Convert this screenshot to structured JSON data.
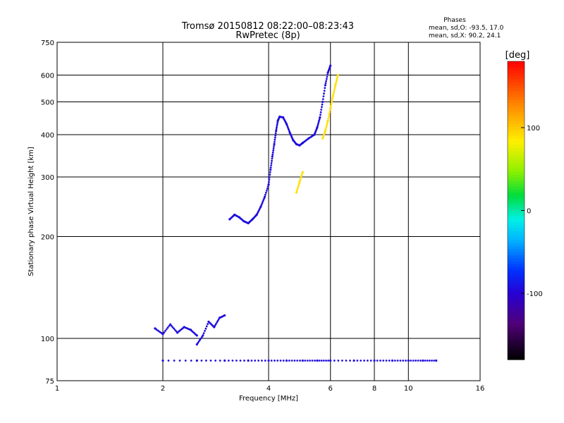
{
  "chart_data": {
    "type": "scatter",
    "title": "Tromsø 20150812 08:22:00–08:23:43",
    "subtitle": "RwPretec (8p)",
    "xlabel": "Frequency [MHz]",
    "ylabel": "Stationary phase Virtual Height [km]",
    "x_scale": "log",
    "y_scale": "log",
    "xlim": [
      1,
      16
    ],
    "ylim": [
      75,
      750
    ],
    "x_ticks": [
      1,
      2,
      4,
      6,
      8,
      10,
      16
    ],
    "y_ticks": [
      75,
      100,
      200,
      300,
      400,
      500,
      600,
      750
    ],
    "grid": true,
    "phase_info": {
      "header": "Phases",
      "line_o": "mean, sd,O: -93.5, 17.0",
      "line_x": "mean, sd,X:  90.2, 24.1"
    },
    "colorbar": {
      "unit_label": "[deg]",
      "range": [
        -180,
        180
      ],
      "ticks": [
        100,
        0,
        -100
      ]
    },
    "series": [
      {
        "phase_mean": -93.5,
        "segments": [
          {
            "x": [
              3.1,
              3.2,
              3.3,
              3.4,
              3.5,
              3.6,
              3.7,
              3.8,
              3.9,
              4.0
            ],
            "y": [
              225,
              232,
              228,
              222,
              219,
              225,
              232,
              245,
              262,
              285
            ]
          },
          {
            "x": [
              4.0,
              4.05,
              4.1,
              4.15,
              4.2,
              4.25,
              4.3
            ],
            "y": [
              285,
              315,
              345,
              375,
              410,
              440,
              452
            ]
          },
          {
            "x": [
              4.3,
              4.4,
              4.5,
              4.6,
              4.7,
              4.8,
              4.9,
              5.0
            ],
            "y": [
              452,
              450,
              430,
              405,
              385,
              375,
              372,
              378
            ]
          },
          {
            "x": [
              5.0,
              5.2,
              5.4,
              5.5,
              5.6,
              5.7,
              5.8,
              5.9,
              6.0
            ],
            "y": [
              378,
              390,
              400,
              420,
              450,
              500,
              560,
              610,
              640
            ]
          },
          {
            "x": [
              1.9,
              2.0,
              2.1,
              2.2,
              2.3,
              2.4,
              2.5
            ],
            "y": [
              107,
              103,
              110,
              104,
              108,
              106,
              102
            ]
          },
          {
            "x": [
              2.5,
              2.6,
              2.7,
              2.8,
              2.9,
              3.0
            ],
            "y": [
              96,
              102,
              112,
              108,
              115,
              117
            ]
          },
          {
            "x": [
              2.0,
              2.5,
              3.0,
              3.5,
              4.0,
              4.5,
              5.0,
              5.5,
              6.0,
              7.0,
              8.0,
              9.0,
              10.0,
              11.0,
              12.0
            ],
            "y": [
              86,
              86,
              86,
              86,
              86,
              86,
              86,
              86,
              86,
              86,
              86,
              86,
              86,
              86,
              86
            ]
          }
        ]
      },
      {
        "phase_mean": 90.2,
        "segments": [
          {
            "x": [
              5.7,
              5.8,
              5.9,
              6.0,
              6.1,
              6.2,
              6.3
            ],
            "y": [
              390,
              410,
              440,
              480,
              520,
              560,
              600
            ]
          },
          {
            "x": [
              4.8,
              4.9,
              5.0
            ],
            "y": [
              270,
              290,
              310
            ]
          }
        ]
      }
    ]
  }
}
